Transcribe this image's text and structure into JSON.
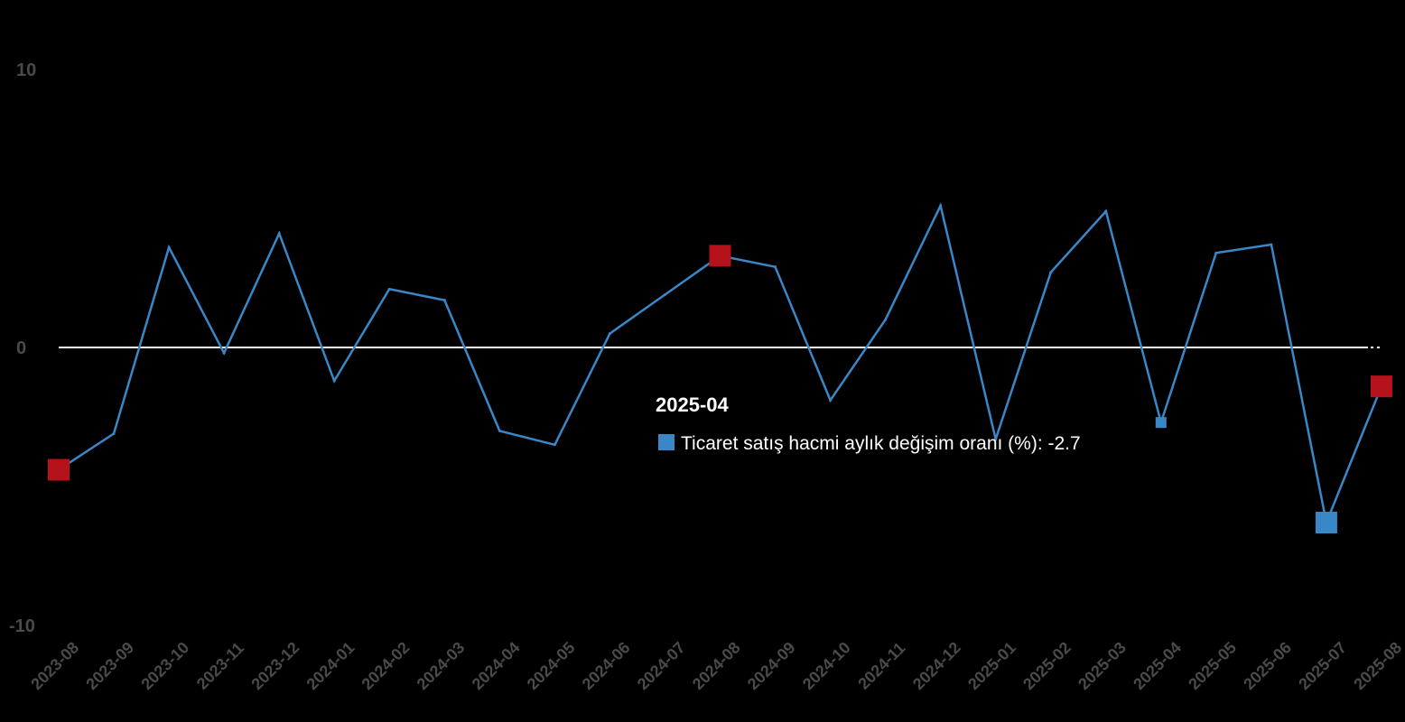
{
  "chart_data": {
    "type": "line",
    "categories": [
      "2023-08",
      "2023-09",
      "2023-10",
      "2023-11",
      "2023-12",
      "2024-01",
      "2024-02",
      "2024-03",
      "2024-04",
      "2024-05",
      "2024-06",
      "2024-07",
      "2024-08",
      "2024-09",
      "2024-10",
      "2024-11",
      "2024-12",
      "2025-01",
      "2025-02",
      "2025-03",
      "2025-04",
      "2025-05",
      "2025-06",
      "2025-07",
      "2025-08"
    ],
    "series": [
      {
        "name": "Ticaret satış hacmi aylık değişim oranı (%)",
        "color": "#3a87c8",
        "values": [
          -4.4,
          -3.1,
          3.6,
          -0.2,
          4.1,
          -1.2,
          2.1,
          1.7,
          -3.0,
          -3.5,
          0.5,
          1.9,
          3.3,
          2.9,
          -1.9,
          1.0,
          5.1,
          -3.3,
          2.7,
          4.9,
          -2.7,
          3.4,
          3.7,
          -6.3,
          -1.4
        ]
      }
    ],
    "ylim": [
      -10,
      10
    ],
    "yticks": [
      10,
      0,
      -10
    ],
    "zero_line_color": "#ffffff",
    "highlight_markers": [
      {
        "category": "2023-08",
        "color": "#b5121b"
      },
      {
        "category": "2024-08",
        "color": "#b5121b"
      },
      {
        "category": "2025-08",
        "color": "#b5121b"
      },
      {
        "category": "2025-07",
        "color": "#3a87c8"
      }
    ],
    "tooltip": {
      "category": "2025-04",
      "title": "2025-04",
      "label": "Ticaret satış hacmi aylık değişim oranı (%): -2.7",
      "swatch_color": "#3a87c8"
    }
  }
}
